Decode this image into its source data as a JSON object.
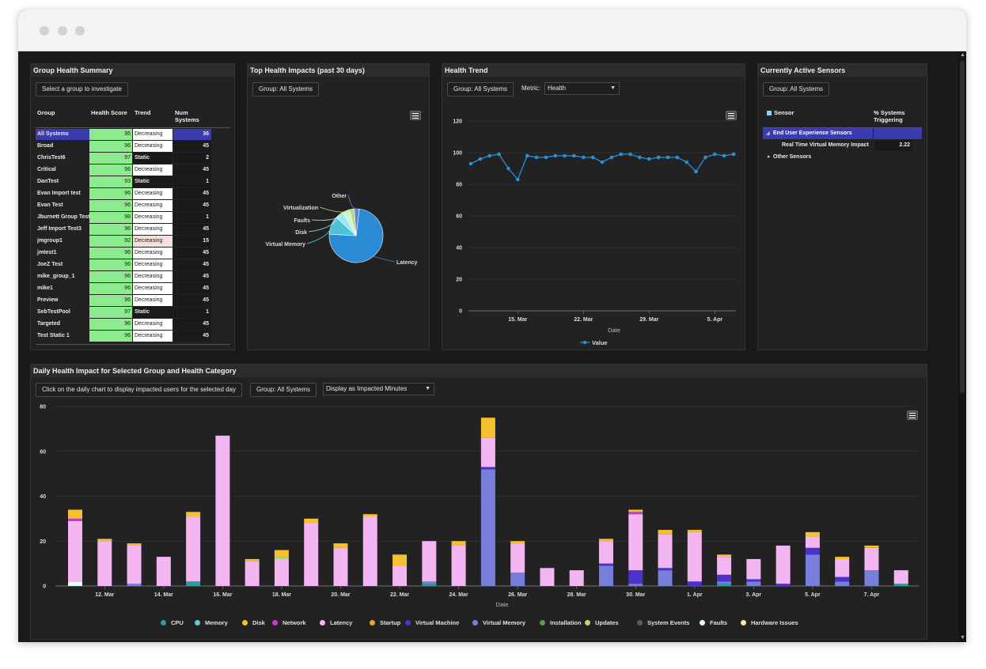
{
  "colors": {
    "cpu": "#2b9b9b",
    "memory": "#6cc6cf",
    "disk": "#f5c12e",
    "network": "#c23ccc",
    "latency": "#f3b6f3",
    "startup": "#e8a23a",
    "virtual_machine": "#4a33cc",
    "virtual_memory": "#7a7edb",
    "installation": "#5a9a4a",
    "updates": "#b7d86a",
    "system_events": "#5a5d66",
    "faults": "#e6fbf0",
    "hardware_issues": "#f1e7b0",
    "health_green": "#8ceb8c",
    "selected_row": "#3b3bb0",
    "line_blue": "#2b8fd6"
  },
  "group_health": {
    "title": "Group Health Summary",
    "select_button": "Select a group to investigate",
    "headers": {
      "group": "Group",
      "score": "Health Score",
      "trend": "Trend",
      "num": "Num Systems"
    },
    "rows": [
      {
        "group": "All Systems",
        "score": "95",
        "trend": "Decreasing",
        "num": "36"
      },
      {
        "group": "Broad",
        "score": "96",
        "trend": "Decreasing",
        "num": "45"
      },
      {
        "group": "ChrisTest6",
        "score": "97",
        "trend": "Static",
        "num": "2"
      },
      {
        "group": "Critical",
        "score": "96",
        "trend": "Decreasing",
        "num": "45"
      },
      {
        "group": "DanTest",
        "score": "93",
        "trend": "Static",
        "num": "1"
      },
      {
        "group": "Evan Import test",
        "score": "96",
        "trend": "Decreasing",
        "num": "45"
      },
      {
        "group": "Evan Test",
        "score": "96",
        "trend": "Decreasing",
        "num": "45"
      },
      {
        "group": "Jburnett Group Test",
        "score": "98",
        "trend": "Decreasing",
        "num": "1"
      },
      {
        "group": "Jeff Import Test3",
        "score": "96",
        "trend": "Decreasing",
        "num": "45"
      },
      {
        "group": "jmgroup1",
        "score": "92",
        "trend": "Decreasing",
        "num": "15"
      },
      {
        "group": "jmtest1",
        "score": "96",
        "trend": "Decreasing",
        "num": "45"
      },
      {
        "group": "JoeZ Test",
        "score": "96",
        "trend": "Decreasing",
        "num": "45"
      },
      {
        "group": "mike_group_1",
        "score": "96",
        "trend": "Decreasing",
        "num": "45"
      },
      {
        "group": "mike1",
        "score": "96",
        "trend": "Decreasing",
        "num": "45"
      },
      {
        "group": "Preview",
        "score": "96",
        "trend": "Decreasing",
        "num": "45"
      },
      {
        "group": "SebTestPool",
        "score": "97",
        "trend": "Static",
        "num": "1"
      },
      {
        "group": "Targeted",
        "score": "96",
        "trend": "Decreasing",
        "num": "45"
      },
      {
        "group": "Test Static 1",
        "score": "96",
        "trend": "Decreasing",
        "num": "45"
      }
    ]
  },
  "top_impacts": {
    "title": "Top Health Impacts (past 30 days)",
    "group_button": "Group: All Systems",
    "menu_icon": "hamburger-menu-icon",
    "chart_data": {
      "type": "pie",
      "slices": [
        {
          "label": "Latency",
          "value": 74,
          "color": "#2a8ad4"
        },
        {
          "label": "Virtual Memory",
          "value": 11,
          "color": "#4cc3d9"
        },
        {
          "label": "Disk",
          "value": 5,
          "color": "#9ee5ef"
        },
        {
          "label": "Faults",
          "value": 4,
          "color": "#c9f5d4"
        },
        {
          "label": "Virtualization",
          "value": 3,
          "color": "#b6dd7a"
        },
        {
          "label": "Other",
          "value": 3,
          "color": "#5c83d6"
        }
      ]
    }
  },
  "health_trend": {
    "title": "Health Trend",
    "group_button": "Group: All Systems",
    "metric_label": "Metric:",
    "metric_value": "Health",
    "menu_icon": "hamburger-menu-icon",
    "chart_data": {
      "type": "line",
      "xlabel": "Date",
      "ylim": [
        0,
        120
      ],
      "yticks": [
        0,
        20,
        40,
        60,
        80,
        100,
        120
      ],
      "xticks": [
        {
          "label": "15. Mar",
          "i": 5
        },
        {
          "label": "22. Mar",
          "i": 12
        },
        {
          "label": "29. Mar",
          "i": 19
        },
        {
          "label": "5. Apr",
          "i": 26
        }
      ],
      "series": [
        {
          "name": "Value",
          "values": [
            93,
            96,
            98,
            99,
            90,
            83,
            98,
            97,
            97,
            98,
            98,
            98,
            97,
            97,
            94,
            97,
            99,
            99,
            97,
            96,
            97,
            97,
            97,
            94,
            88,
            97,
            99,
            98,
            99
          ]
        }
      ]
    }
  },
  "active_sensors": {
    "title": "Currently Active Sensors",
    "group_button": "Group: All Systems",
    "headers": {
      "sensor": "Sensor",
      "pct": "% Systems Triggering"
    },
    "rows": [
      {
        "label": "End User Experience Sensors",
        "value": "",
        "type": "group-expanded"
      },
      {
        "label": "Real Time Virtual Memory Impact",
        "value": "2.22",
        "type": "child"
      },
      {
        "label": "Other Sensors",
        "value": "",
        "type": "group-collapsed"
      }
    ]
  },
  "daily_impact": {
    "title": "Daily Health Impact for Selected Group and Health Category",
    "click_hint": "Click on the daily chart to display impacted users for the selected day",
    "group_button": "Group: All Systems",
    "display_select": "Display as Impacted Minutes",
    "menu_icon": "hamburger-menu-icon",
    "chart_data": {
      "type": "bar",
      "stacked": true,
      "xlabel": "Date",
      "ylim": [
        0,
        80
      ],
      "yticks": [
        0,
        20,
        40,
        60,
        80
      ],
      "xticks": [
        "12. Mar",
        "14. Mar",
        "16. Mar",
        "18. Mar",
        "20. Mar",
        "22. Mar",
        "24. Mar",
        "26. Mar",
        "28. Mar",
        "30. Mar",
        "1. Apr",
        "3. Apr",
        "5. Apr",
        "7. Apr"
      ],
      "xtick_days": [
        1,
        3,
        5,
        7,
        9,
        11,
        13,
        15,
        17,
        19,
        21,
        23,
        25,
        27
      ],
      "bars": [
        {
          "day": 0,
          "faults": 2,
          "latency": 27,
          "network": 1,
          "disk": 4
        },
        {
          "day": 1,
          "latency": 20,
          "disk": 1
        },
        {
          "day": 2,
          "virtual_memory": 1,
          "latency": 17,
          "disk": 1
        },
        {
          "day": 3,
          "latency": 13
        },
        {
          "day": 4,
          "latency": 29,
          "disk": 2,
          "cpu": 2
        },
        {
          "day": 5,
          "latency": 67
        },
        {
          "day": 6,
          "latency": 11,
          "disk": 1
        },
        {
          "day": 7,
          "latency": 12,
          "disk": 3,
          "updates": 1
        },
        {
          "day": 8,
          "latency": 28,
          "disk": 2
        },
        {
          "day": 9,
          "latency": 17,
          "disk": 2
        },
        {
          "day": 10,
          "latency": 31,
          "disk": 1
        },
        {
          "day": 11,
          "latency": 9,
          "disk": 5
        },
        {
          "day": 12,
          "virtual_memory": 1,
          "latency": 18,
          "cpu": 1
        },
        {
          "day": 13,
          "latency": 18,
          "disk": 2
        },
        {
          "day": 14,
          "virtual_memory": 52,
          "virtual_machine": 1,
          "latency": 13,
          "disk": 9
        },
        {
          "day": 15,
          "virtual_memory": 6,
          "latency": 13,
          "disk": 1
        },
        {
          "day": 16,
          "latency": 8
        },
        {
          "day": 17,
          "latency": 7
        },
        {
          "day": 18,
          "virtual_memory": 9,
          "virtual_machine": 1,
          "latency": 10,
          "disk": 1
        },
        {
          "day": 19,
          "virtual_memory": 1,
          "virtual_machine": 6,
          "latency": 25,
          "network": 1,
          "disk": 1
        },
        {
          "day": 20,
          "virtual_memory": 7,
          "virtual_machine": 1,
          "latency": 15,
          "disk": 2
        },
        {
          "day": 21,
          "virtual_machine": 2,
          "latency": 22,
          "disk": 1
        },
        {
          "day": 22,
          "virtual_memory": 1,
          "virtual_machine": 3,
          "latency": 8,
          "disk": 1,
          "cpu": 1
        },
        {
          "day": 23,
          "virtual_memory": 2,
          "virtual_machine": 1,
          "latency": 9
        },
        {
          "day": 24,
          "virtual_machine": 1,
          "latency": 17
        },
        {
          "day": 25,
          "virtual_memory": 14,
          "virtual_machine": 3,
          "latency": 5,
          "disk": 2
        },
        {
          "day": 26,
          "virtual_memory": 2,
          "virtual_machine": 2,
          "latency": 8,
          "disk": 1
        },
        {
          "day": 27,
          "virtual_memory": 7,
          "latency": 10,
          "disk": 1
        },
        {
          "day": 28,
          "latency": 6,
          "cpu": 1
        }
      ],
      "legend": [
        {
          "key": "cpu",
          "label": "CPU"
        },
        {
          "key": "memory",
          "label": "Memory"
        },
        {
          "key": "disk",
          "label": "Disk"
        },
        {
          "key": "network",
          "label": "Network"
        },
        {
          "key": "latency",
          "label": "Latency"
        },
        {
          "key": "startup",
          "label": "Startup"
        },
        {
          "key": "virtual_machine",
          "label": "Virtual Machine"
        },
        {
          "key": "virtual_memory",
          "label": "Virtual Memory"
        },
        {
          "key": "installation",
          "label": "Installation"
        },
        {
          "key": "updates",
          "label": "Updates"
        },
        {
          "key": "system_events",
          "label": "System Events"
        },
        {
          "key": "faults",
          "label": "Faults"
        },
        {
          "key": "hardware_issues",
          "label": "Hardware Issues"
        }
      ]
    }
  }
}
